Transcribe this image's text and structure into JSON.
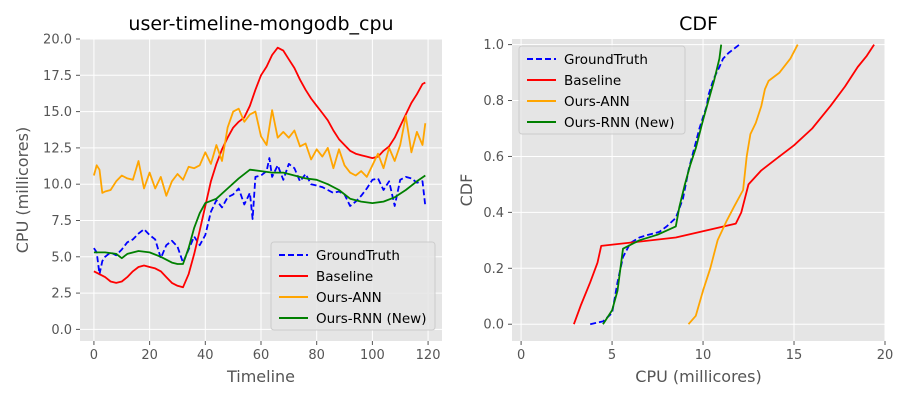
{
  "chart_data": [
    {
      "type": "line",
      "title": "user-timeline-mongodb_cpu",
      "xlabel": "Timeline",
      "ylabel": "CPU (millicores)",
      "xlim": [
        -5,
        125
      ],
      "ylim": [
        -0.8,
        20
      ],
      "x_ticks": [
        "0",
        "20",
        "40",
        "60",
        "80",
        "100",
        "120"
      ],
      "y_ticks": [
        "0.0",
        "2.5",
        "5.0",
        "7.5",
        "10.0",
        "12.5",
        "15.0",
        "17.5",
        "20.0"
      ],
      "grid": true,
      "legend_position": "lower-right",
      "series": [
        {
          "name": "GroundTruth",
          "color": "#0000ff",
          "style": "dashed",
          "x": [
            0,
            1,
            2,
            3,
            4,
            6,
            8,
            10,
            12,
            14,
            16,
            18,
            20,
            22,
            24,
            26,
            28,
            30,
            32,
            34,
            36,
            38,
            40,
            42,
            44,
            46,
            48,
            50,
            52,
            54,
            56,
            57,
            58,
            60,
            62,
            63,
            64,
            66,
            68,
            70,
            72,
            74,
            76,
            78,
            80,
            82,
            84,
            86,
            88,
            90,
            92,
            94,
            96,
            98,
            100,
            102,
            104,
            106,
            108,
            110,
            112,
            114,
            116,
            118,
            119
          ],
          "y": [
            5.6,
            5.3,
            3.8,
            4.7,
            5.0,
            5.3,
            5.1,
            5.5,
            6.0,
            6.2,
            6.6,
            6.9,
            6.5,
            6.2,
            4.9,
            5.8,
            6.1,
            5.7,
            4.6,
            5.5,
            6.4,
            5.8,
            6.5,
            8.1,
            8.9,
            8.4,
            9.1,
            9.3,
            9.7,
            8.6,
            9.4,
            7.6,
            10.5,
            10.6,
            10.9,
            11.8,
            10.5,
            11.3,
            10.3,
            11.4,
            11.1,
            10.2,
            10.7,
            10.0,
            9.9,
            9.8,
            9.6,
            9.4,
            9.5,
            9.3,
            8.5,
            8.8,
            9.2,
            9.7,
            10.3,
            10.4,
            9.6,
            10.2,
            8.5,
            10.3,
            10.5,
            10.4,
            10.1,
            10.2,
            8.5
          ]
        },
        {
          "name": "Baseline",
          "color": "#ff0000",
          "style": "solid",
          "x": [
            0,
            2,
            4,
            6,
            8,
            10,
            12,
            14,
            16,
            18,
            20,
            22,
            24,
            26,
            28,
            30,
            32,
            34,
            36,
            38,
            40,
            42,
            44,
            46,
            48,
            50,
            52,
            54,
            56,
            58,
            60,
            62,
            64,
            66,
            68,
            70,
            72,
            74,
            76,
            78,
            80,
            82,
            84,
            86,
            88,
            90,
            92,
            94,
            96,
            98,
            100,
            102,
            104,
            106,
            108,
            110,
            112,
            114,
            116,
            118,
            119
          ],
          "y": [
            4.0,
            3.8,
            3.6,
            3.3,
            3.2,
            3.3,
            3.6,
            4.0,
            4.3,
            4.4,
            4.3,
            4.2,
            4.0,
            3.6,
            3.2,
            3.0,
            2.9,
            3.8,
            5.2,
            6.8,
            8.5,
            10.2,
            11.4,
            12.4,
            13.2,
            13.9,
            14.3,
            14.6,
            15.4,
            16.5,
            17.5,
            18.1,
            18.9,
            19.4,
            19.2,
            18.6,
            18.0,
            17.2,
            16.5,
            15.9,
            15.4,
            14.9,
            14.4,
            13.7,
            13.1,
            12.7,
            12.3,
            12.1,
            12.0,
            11.9,
            11.8,
            11.9,
            12.3,
            12.6,
            13.2,
            14.0,
            14.8,
            15.6,
            16.2,
            16.9,
            17.0
          ]
        },
        {
          "name": "Ours-ANN",
          "color": "#ffa500",
          "style": "solid",
          "x": [
            0,
            1,
            2,
            3,
            4,
            6,
            8,
            10,
            12,
            14,
            16,
            18,
            20,
            22,
            24,
            26,
            28,
            30,
            32,
            34,
            36,
            38,
            40,
            42,
            44,
            46,
            48,
            50,
            52,
            54,
            56,
            58,
            60,
            62,
            64,
            66,
            68,
            70,
            72,
            74,
            76,
            78,
            80,
            82,
            84,
            86,
            88,
            90,
            92,
            94,
            96,
            98,
            100,
            102,
            104,
            106,
            108,
            110,
            112,
            114,
            116,
            118,
            119
          ],
          "y": [
            10.6,
            11.3,
            11.0,
            9.4,
            9.5,
            9.6,
            10.2,
            10.6,
            10.4,
            10.3,
            11.6,
            9.7,
            10.8,
            9.7,
            10.5,
            9.2,
            10.2,
            10.7,
            10.3,
            11.2,
            11.1,
            11.3,
            12.2,
            11.4,
            12.7,
            11.6,
            13.9,
            15.0,
            15.2,
            14.3,
            14.8,
            15.0,
            13.3,
            12.7,
            15.1,
            13.2,
            13.6,
            13.2,
            13.7,
            12.6,
            12.8,
            11.7,
            12.4,
            11.9,
            12.5,
            11.1,
            12.4,
            11.3,
            10.8,
            10.6,
            10.9,
            10.5,
            11.3,
            12.1,
            11.1,
            12.5,
            11.6,
            12.7,
            14.7,
            12.2,
            13.6,
            12.7,
            14.2
          ]
        },
        {
          "name": "Ours-RNN (New)",
          "color": "#008000",
          "style": "solid",
          "x": [
            0,
            4,
            8,
            10,
            12,
            16,
            20,
            24,
            28,
            30,
            32,
            34,
            36,
            38,
            40,
            44,
            48,
            52,
            56,
            60,
            64,
            68,
            72,
            76,
            80,
            84,
            88,
            92,
            96,
            100,
            104,
            108,
            112,
            116,
            119
          ],
          "y": [
            5.3,
            5.3,
            5.2,
            4.9,
            5.2,
            5.4,
            5.3,
            5.0,
            4.6,
            4.5,
            4.5,
            5.6,
            7.0,
            8.0,
            8.7,
            9.0,
            9.7,
            10.4,
            11.0,
            10.9,
            10.8,
            10.8,
            10.6,
            10.4,
            10.3,
            10.0,
            9.6,
            9.0,
            8.8,
            8.7,
            8.8,
            9.1,
            9.6,
            10.2,
            10.6
          ]
        }
      ]
    },
    {
      "type": "line",
      "title": "CDF",
      "xlabel": "CPU (millicores)",
      "ylabel": "CDF",
      "xlim": [
        -0.5,
        20
      ],
      "ylim": [
        -0.06,
        1.02
      ],
      "x_ticks": [
        "0",
        "5",
        "10",
        "15",
        "20"
      ],
      "y_ticks": [
        "0.0",
        "0.2",
        "0.4",
        "0.6",
        "0.8",
        "1.0"
      ],
      "grid": true,
      "legend_position": "upper-left",
      "series": [
        {
          "name": "GroundTruth",
          "color": "#0000ff",
          "style": "dashed",
          "x": [
            3.8,
            4.5,
            5.0,
            5.3,
            5.6,
            6.0,
            6.5,
            7.0,
            7.6,
            8.0,
            8.5,
            8.9,
            9.2,
            9.4,
            9.6,
            9.8,
            10.0,
            10.2,
            10.3,
            10.5,
            10.6,
            10.9,
            11.1,
            11.4,
            12.0
          ],
          "y": [
            0.0,
            0.01,
            0.04,
            0.15,
            0.24,
            0.29,
            0.31,
            0.32,
            0.33,
            0.35,
            0.38,
            0.45,
            0.55,
            0.6,
            0.65,
            0.7,
            0.74,
            0.78,
            0.82,
            0.86,
            0.88,
            0.92,
            0.95,
            0.97,
            1.0
          ]
        },
        {
          "name": "Baseline",
          "color": "#ff0000",
          "style": "solid",
          "x": [
            2.9,
            3.3,
            3.8,
            4.2,
            4.4,
            8.5,
            10.5,
            11.8,
            12.1,
            12.5,
            13.2,
            14.0,
            15.0,
            16.0,
            17.0,
            17.8,
            18.5,
            19.0,
            19.4
          ],
          "y": [
            0.0,
            0.07,
            0.15,
            0.22,
            0.28,
            0.31,
            0.34,
            0.36,
            0.4,
            0.5,
            0.55,
            0.59,
            0.64,
            0.7,
            0.78,
            0.85,
            0.92,
            0.96,
            1.0
          ]
        },
        {
          "name": "Ours-ANN",
          "color": "#ffa500",
          "style": "solid",
          "x": [
            9.2,
            9.6,
            10.0,
            10.4,
            10.8,
            11.3,
            11.7,
            12.2,
            12.4,
            12.6,
            12.9,
            13.2,
            13.4,
            13.6,
            14.2,
            14.8,
            15.2
          ],
          "y": [
            0.0,
            0.03,
            0.12,
            0.2,
            0.3,
            0.37,
            0.42,
            0.48,
            0.6,
            0.68,
            0.72,
            0.78,
            0.84,
            0.87,
            0.9,
            0.95,
            1.0
          ]
        },
        {
          "name": "Ours-RNN (New)",
          "color": "#008000",
          "style": "solid",
          "x": [
            4.5,
            5.0,
            5.3,
            5.6,
            6.5,
            7.5,
            8.5,
            8.7,
            9.0,
            9.3,
            9.6,
            9.8,
            10.0,
            10.3,
            10.6,
            10.9,
            11.0
          ],
          "y": [
            0.0,
            0.05,
            0.12,
            0.27,
            0.3,
            0.32,
            0.35,
            0.42,
            0.5,
            0.57,
            0.63,
            0.68,
            0.73,
            0.8,
            0.87,
            0.95,
            1.0
          ]
        }
      ]
    }
  ]
}
